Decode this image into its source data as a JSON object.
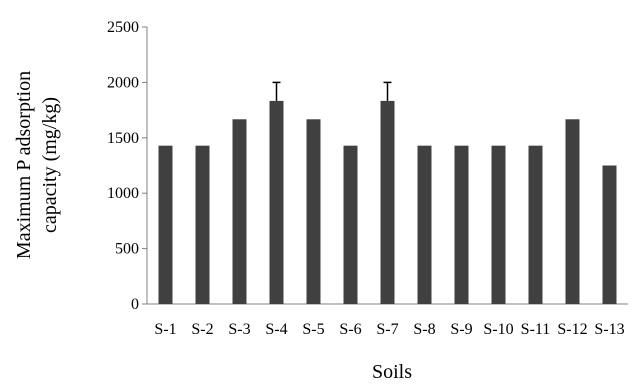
{
  "chart_data": {
    "type": "bar",
    "title": "",
    "xlabel": "Soils",
    "ylabel": [
      "Maximum P adsorption",
      "capacity (mg/kg)"
    ],
    "categories": [
      "S-1",
      "S-2",
      "S-3",
      "S-4",
      "S-5",
      "S-6",
      "S-7",
      "S-8",
      "S-9",
      "S-10",
      "S-11",
      "S-12",
      "S-13"
    ],
    "series": [
      {
        "values": [
          1429,
          1429,
          1667,
          1833,
          1667,
          1429,
          1833,
          1429,
          1429,
          1429,
          1429,
          1667,
          1250
        ],
        "error_upper": [
          0,
          0,
          0,
          167,
          0,
          0,
          167,
          0,
          0,
          0,
          0,
          0,
          0
        ]
      }
    ],
    "ylim": [
      0,
      2500
    ],
    "yticks": [
      "0",
      "500",
      "1000",
      "1500",
      "2000",
      "2500"
    ],
    "grid": false,
    "legend": "none",
    "colors": {
      "bar": "#404040",
      "axis": "#808080",
      "error_bar": "#000000"
    }
  }
}
